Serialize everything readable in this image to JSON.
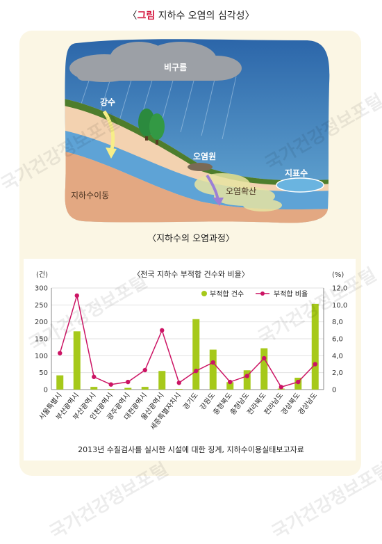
{
  "figure_title_prefix": "〈",
  "figure_title_accent": "그림",
  "figure_title_rest": " 지하수 오염의 심각성〉",
  "diagram": {
    "labels": {
      "cloud": "비구름",
      "rain": "강수",
      "source": "오염원",
      "surface": "지표수",
      "spread": "오염확산",
      "groundwater": "지하수이동"
    },
    "caption": "〈지하수의 오염과정〉"
  },
  "watermark": "국가건강정보포털",
  "source_note": "2013년 수질검사를 실시한 시설에 대한 징계, 지하수이용실태보고자료",
  "colors": {
    "bar": "#a6c91a",
    "line": "#cc1464",
    "accent": "#d4143c"
  },
  "chart_data": {
    "type": "bar",
    "title": "〈전국 지하수 부적합 건수와 비율〉",
    "left_unit": "(건)",
    "right_unit": "(%)",
    "categories": [
      "서울특별시",
      "부산광역시",
      "부산광역시",
      "인천광역시",
      "광주광역시",
      "대전광역시",
      "울산광역시",
      "세종특별자치시",
      "경기도",
      "강원도",
      "충청북도",
      "충청남도",
      "전라북도",
      "전라남도",
      "경상북도",
      "경상남도"
    ],
    "ylim": [
      0,
      300
    ],
    "y2lim": [
      0,
      12
    ],
    "yticks": [
      "0",
      "50",
      "100",
      "150",
      "200",
      "250",
      "300"
    ],
    "y2ticks": [
      "0",
      "2,0",
      "4,0",
      "6,0",
      "8,0",
      "10,0",
      "12,0"
    ],
    "series": [
      {
        "name": "부적합 건수",
        "type": "bar",
        "axis": "left",
        "values": [
          42,
          172,
          8,
          2,
          5,
          8,
          55,
          2,
          208,
          118,
          22,
          57,
          122,
          3,
          35,
          253
        ]
      },
      {
        "name": "부적합 비율",
        "type": "line",
        "axis": "right",
        "values": [
          4.3,
          11.1,
          1.5,
          0.6,
          0.9,
          2.3,
          7.0,
          0.8,
          2.2,
          3.2,
          0.9,
          1.6,
          3.7,
          0.3,
          0.9,
          3.0
        ]
      }
    ]
  }
}
